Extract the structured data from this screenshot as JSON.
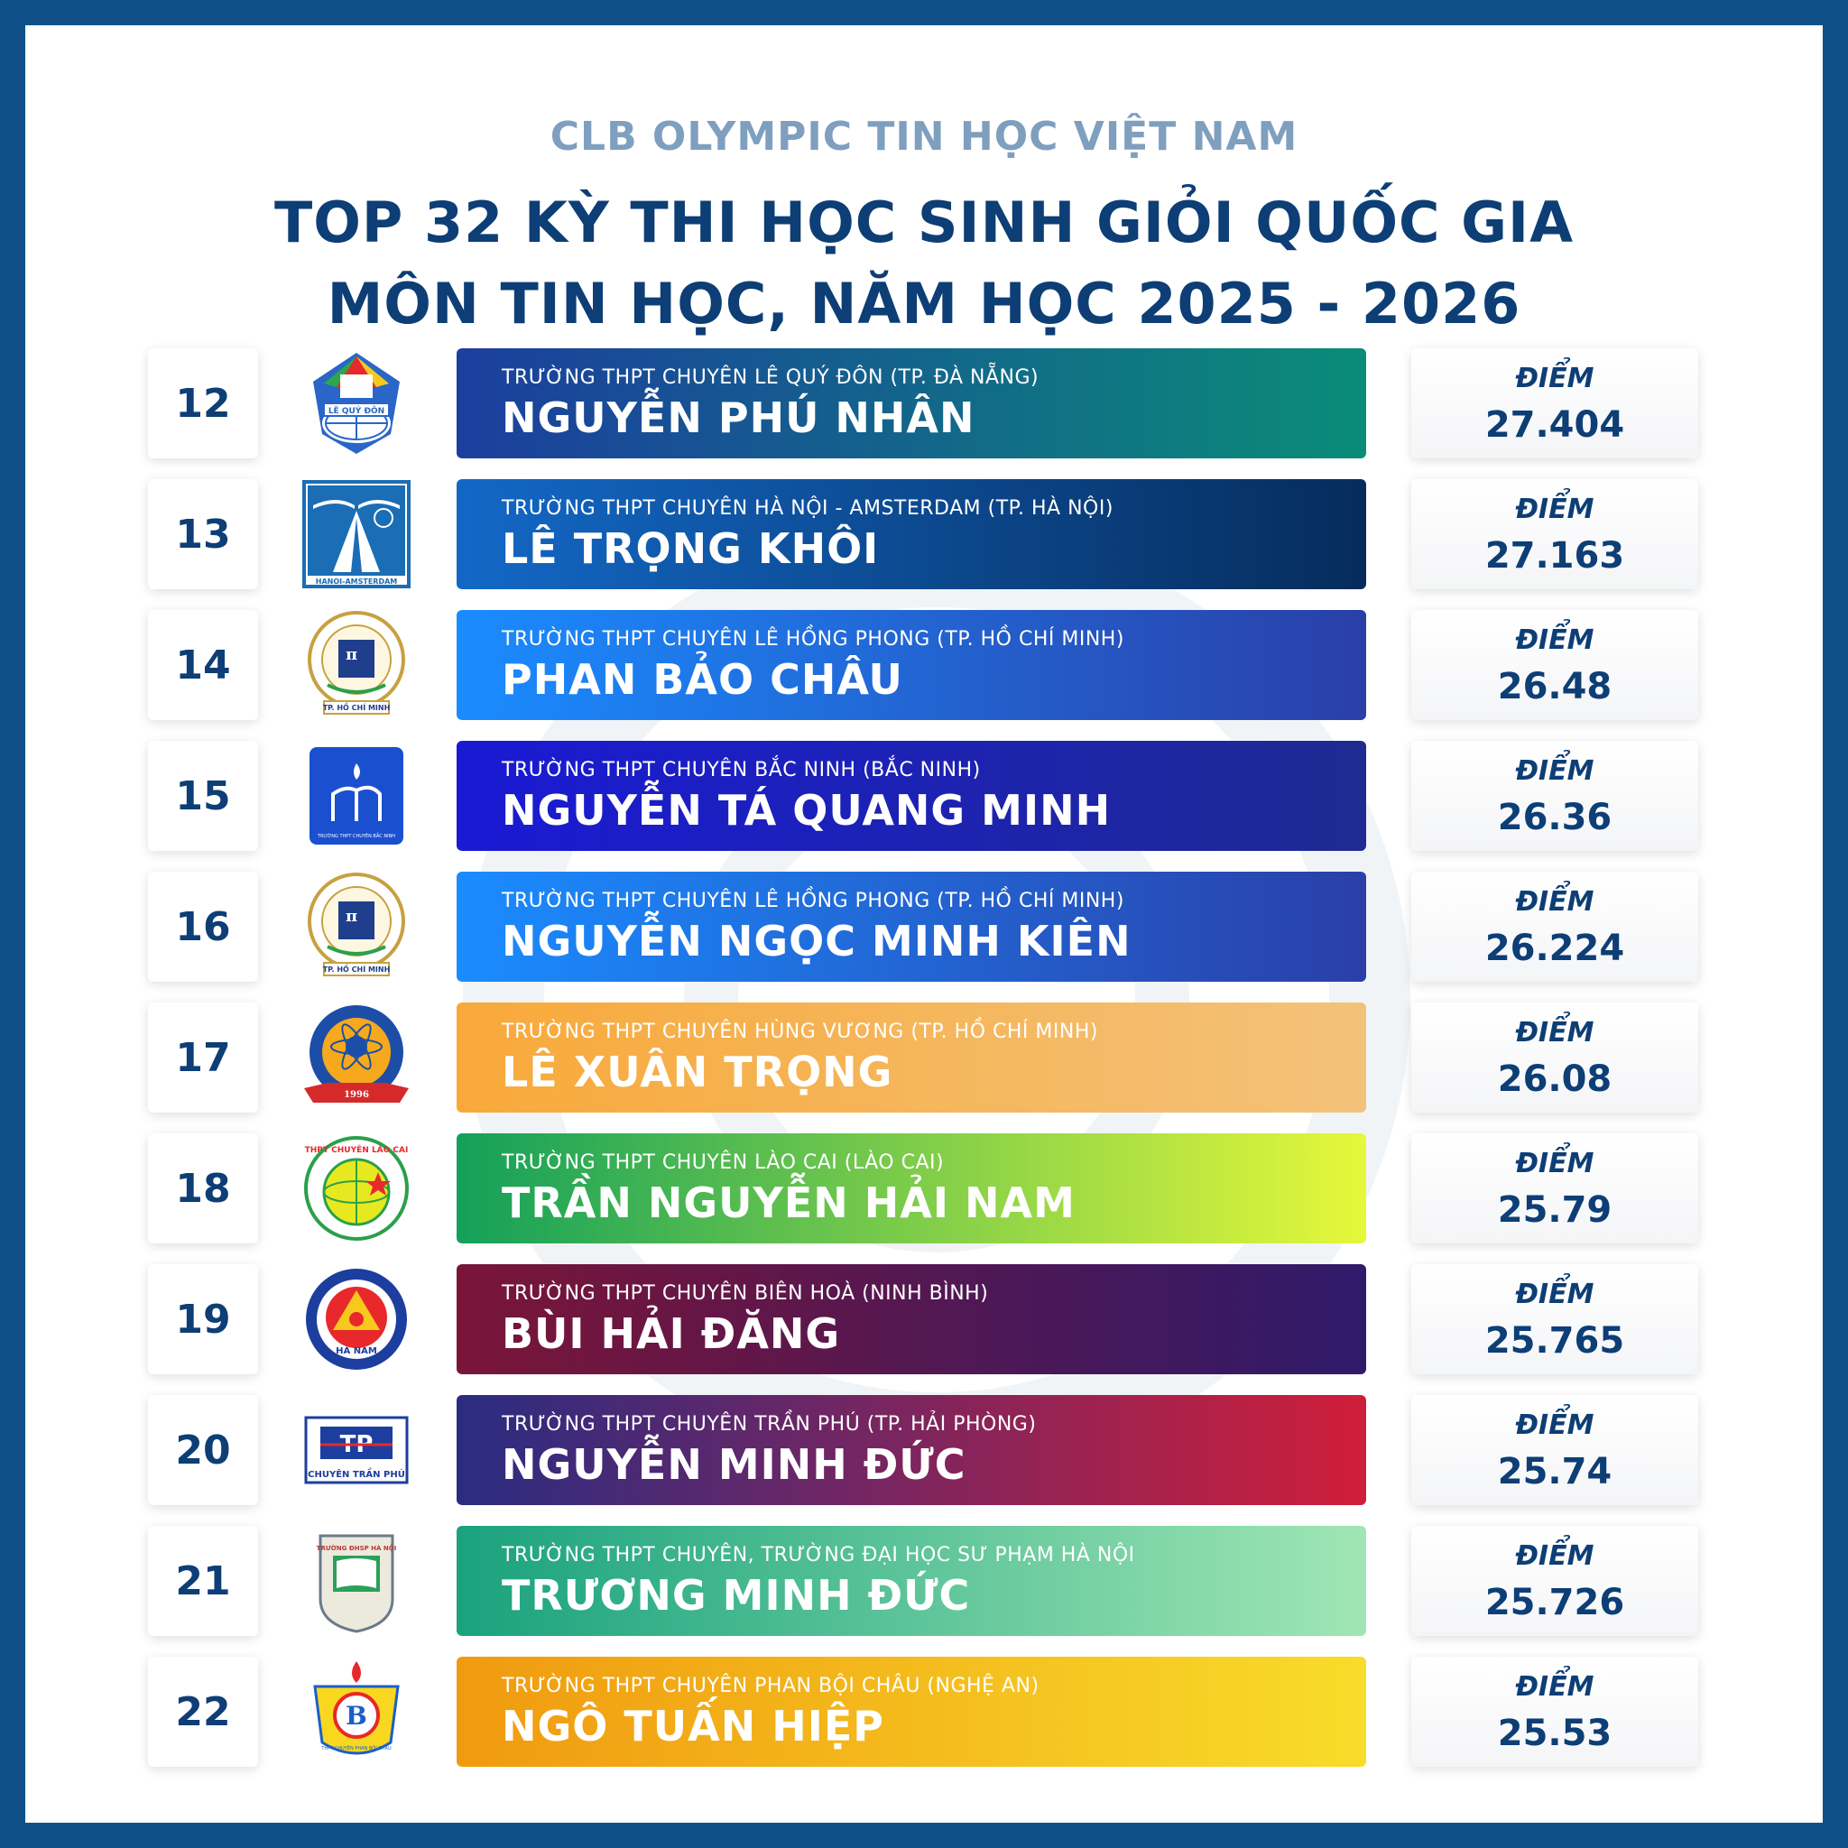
{
  "header": {
    "club": "CLB OLYMPIC TIN HỌC VIỆT NAM",
    "title_line1": "TOP 32 KỲ THI HỌC SINH GIỎI QUỐC GIA",
    "title_line2": "MÔN TIN HỌC, NĂM HỌC 2025 - 2026"
  },
  "score_label": "ĐIỂM",
  "rows": [
    {
      "rank": "12",
      "school": "TRƯỜNG THPT CHUYÊN LÊ QUÝ ĐÔN (TP. ĐÀ NẴNG)",
      "name": "NGUYỄN PHÚ NHÂN",
      "score": "27.404",
      "colors": [
        "#1c3e9e",
        "#0a8c78"
      ],
      "logo": "le-quy-don-logo",
      "logo_text": "LÊ QUÝ ĐÔN"
    },
    {
      "rank": "13",
      "school": "TRƯỜNG THPT CHUYÊN HÀ NỘI - AMSTERDAM (TP. HÀ NỘI)",
      "name": "LÊ TRỌNG KHÔI",
      "score": "27.163",
      "colors": [
        "#1368c6",
        "#062c5c"
      ],
      "logo": "hanoi-amsterdam-logo",
      "logo_text": "HANOI-AMSTERDAM"
    },
    {
      "rank": "14",
      "school": "TRƯỜNG THPT CHUYÊN LÊ HỒNG PHONG (TP. HỒ CHÍ MINH)",
      "name": "PHAN BẢO CHÂU",
      "score": "26.48",
      "colors": [
        "#1a8cff",
        "#2a3fa8"
      ],
      "logo": "le-hong-phong-logo",
      "logo_text": "TP. HỒ CHÍ MINH"
    },
    {
      "rank": "15",
      "school": "TRƯỜNG THPT CHUYÊN BẮC NINH (BẮC NINH)",
      "name": "NGUYỄN TÁ QUANG MINH",
      "score": "26.36",
      "colors": [
        "#1a1ad4",
        "#1f2a92"
      ],
      "logo": "bac-ninh-logo",
      "logo_text": "TRƯỜNG THPT CHUYÊN BẮC NINH"
    },
    {
      "rank": "16",
      "school": "TRƯỜNG THPT CHUYÊN LÊ HỒNG PHONG (TP. HỒ CHÍ MINH)",
      "name": "NGUYỄN NGỌC MINH KIÊN",
      "score": "26.224",
      "colors": [
        "#1a8cff",
        "#2a3fa8"
      ],
      "logo": "le-hong-phong-logo",
      "logo_text": "TP. HỒ CHÍ MINH"
    },
    {
      "rank": "17",
      "school": "TRƯỜNG THPT CHUYÊN HÙNG VƯƠNG (TP. HỒ CHÍ MINH)",
      "name": "LÊ XUÂN TRỌNG",
      "score": "26.08",
      "colors": [
        "#f8a93a",
        "#f3c27a"
      ],
      "logo": "hung-vuong-logo",
      "logo_text": "1996"
    },
    {
      "rank": "18",
      "school": "TRƯỜNG THPT CHUYÊN LÀO CAI (LÀO CAI)",
      "name": "TRẦN NGUYỄN HẢI NAM",
      "score": "25.79",
      "colors": [
        "#14a05a",
        "#e6f83a"
      ],
      "logo": "lao-cai-logo",
      "logo_text": "THPT CHUYÊN LÀO CAI"
    },
    {
      "rank": "19",
      "school": "TRƯỜNG THPT CHUYÊN BIÊN HOÀ (NINH BÌNH)",
      "name": "BÙI HẢI ĐĂNG",
      "score": "25.765",
      "colors": [
        "#7a1538",
        "#2f1a6a"
      ],
      "logo": "bien-hoa-logo",
      "logo_text": "HÀ NAM"
    },
    {
      "rank": "20",
      "school": "TRƯỜNG THPT CHUYÊN TRẦN PHÚ (TP. HẢI PHÒNG)",
      "name": "NGUYỄN MINH ĐỨC",
      "score": "25.74",
      "colors": [
        "#2a2c82",
        "#d01e3a"
      ],
      "logo": "tran-phu-logo",
      "logo_text": "CHUYÊN TRẦN PHÚ"
    },
    {
      "rank": "21",
      "school": "TRƯỜNG THPT CHUYÊN, TRƯỜNG ĐẠI HỌC SƯ PHẠM HÀ NỘI",
      "name": "TRƯƠNG MINH ĐỨC",
      "score": "25.726",
      "colors": [
        "#1aa27e",
        "#a0e6b4"
      ],
      "logo": "dhsp-hanoi-logo",
      "logo_text": "TRƯỜNG ĐHSP HÀ NỘI"
    },
    {
      "rank": "22",
      "school": "TRƯỜNG THPT CHUYÊN PHAN BỘI CHÂU (NGHỆ AN)",
      "name": "NGÔ TUẤN HIỆP",
      "score": "25.53",
      "colors": [
        "#f09a10",
        "#f8dc2a"
      ],
      "logo": "phan-boi-chau-logo",
      "logo_text": "THPT CHUYÊN PHAN BỘI CHÂU"
    }
  ]
}
